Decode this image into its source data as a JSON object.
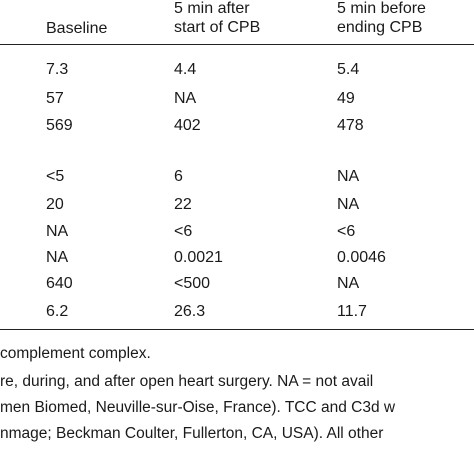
{
  "header": {
    "baseline": "Baseline",
    "after_start_line1": "5 min after",
    "after_start_line2": "start of CPB",
    "before_end_line1": "5 min before",
    "before_end_line2": "ending CPB"
  },
  "rows": [
    [
      "7.3",
      "4.4",
      "5.4"
    ],
    [
      "57",
      "NA",
      "49"
    ],
    [
      "569",
      "402",
      "478"
    ],
    [
      "<5",
      "6",
      "NA"
    ],
    [
      "20",
      "22",
      "NA"
    ],
    [
      "NA",
      "<6",
      "<6"
    ],
    [
      "NA",
      "0.0021",
      "0.0046"
    ],
    [
      "640",
      "<500",
      "NA"
    ],
    [
      "6.2",
      "26.3",
      "11.7"
    ]
  ],
  "footnotes": [
    "complement complex.",
    "re, during, and after open heart surgery. NA = not avail",
    "men Biomed, Neuville-sur-Oise, France). TCC and C3d w",
    "nmage; Beckman Coulter, Fullerton, CA, USA). All other"
  ]
}
